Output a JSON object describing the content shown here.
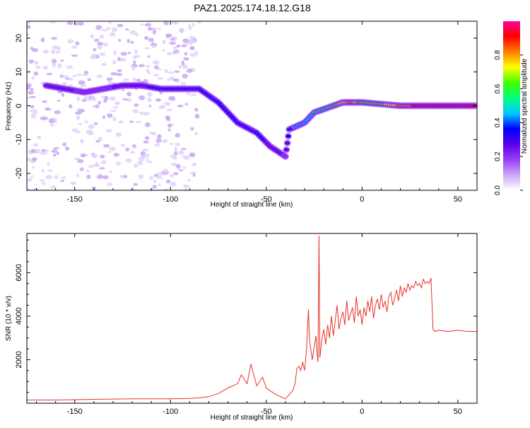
{
  "title": "PAZ1.2025.174.18.12.G18",
  "chart_data": [
    {
      "type": "heatmap",
      "xlabel": "Height of straight line (km)",
      "ylabel": "Frequency (Hz)",
      "xlim": [
        -175,
        60
      ],
      "ylim": [
        -25,
        25
      ],
      "xticks": [
        -150,
        -100,
        -50,
        0,
        50
      ],
      "yticks": [
        -20,
        -10,
        0,
        10,
        20
      ],
      "colorbar": {
        "label": "Normalized spectral amplitude",
        "range": [
          0,
          1
        ],
        "ticks": [
          0.0,
          0.2,
          0.4,
          0.6,
          0.8
        ],
        "colors": [
          "#ffffff",
          "#c9a8f5",
          "#9a3df5",
          "#5a00e8",
          "#0000ff",
          "#00c8ff",
          "#00ff80",
          "#40ff00",
          "#ffff00",
          "#ff8000",
          "#ff0000",
          "#ff00a0"
        ]
      },
      "ridge": [
        {
          "x": -165,
          "y": 6,
          "v": 0.3
        },
        {
          "x": -155,
          "y": 5,
          "v": 0.25
        },
        {
          "x": -145,
          "y": 4,
          "v": 0.2
        },
        {
          "x": -135,
          "y": 5,
          "v": 0.2
        },
        {
          "x": -125,
          "y": 6,
          "v": 0.25
        },
        {
          "x": -115,
          "y": 6,
          "v": 0.3
        },
        {
          "x": -105,
          "y": 5,
          "v": 0.35
        },
        {
          "x": -95,
          "y": 5,
          "v": 0.35
        },
        {
          "x": -85,
          "y": 5,
          "v": 0.35
        },
        {
          "x": -75,
          "y": 1,
          "v": 0.35
        },
        {
          "x": -65,
          "y": -5,
          "v": 0.35
        },
        {
          "x": -55,
          "y": -8,
          "v": 0.35
        },
        {
          "x": -48,
          "y": -12,
          "v": 0.3
        },
        {
          "x": -40,
          "y": -15,
          "v": 0.2
        },
        {
          "x": -38,
          "y": -7,
          "v": 0.4
        },
        {
          "x": -30,
          "y": -5,
          "v": 0.45
        },
        {
          "x": -25,
          "y": -2,
          "v": 0.5
        },
        {
          "x": -15,
          "y": 0,
          "v": 0.6
        },
        {
          "x": -10,
          "y": 1,
          "v": 0.75
        },
        {
          "x": -5,
          "y": 1,
          "v": 0.8
        },
        {
          "x": 0,
          "y": 1,
          "v": 0.6
        },
        {
          "x": 10,
          "y": 0.5,
          "v": 0.65
        },
        {
          "x": 20,
          "y": 0,
          "v": 0.8
        },
        {
          "x": 30,
          "y": 0,
          "v": 0.9
        },
        {
          "x": 40,
          "y": 0,
          "v": 0.95
        },
        {
          "x": 50,
          "y": 0,
          "v": 0.95
        },
        {
          "x": 60,
          "y": 0,
          "v": 0.95
        }
      ]
    },
    {
      "type": "line",
      "xlabel": "Height of straight line (km)",
      "ylabel": "SNR (10 * v/v)",
      "xlim": [
        -175,
        60
      ],
      "ylim": [
        0,
        7800
      ],
      "xticks": [
        -150,
        -100,
        -50,
        0,
        50
      ],
      "yticks": [
        2000,
        4000,
        6000
      ],
      "color": "#e8312a",
      "series": [
        {
          "x": [
            -175,
            -160,
            -140,
            -120,
            -100,
            -90,
            -85,
            -80,
            -75,
            -70,
            -65,
            -63,
            -60,
            -58,
            -55,
            -52,
            -50,
            -45,
            -40,
            -38,
            -36,
            -35,
            -34,
            -33,
            -32,
            -31,
            -30,
            -29,
            -28.5,
            -28,
            -27.5,
            -27,
            -26,
            -25,
            -24,
            -23.5,
            -23,
            -22.5,
            -22,
            -21,
            -20,
            -19,
            -18,
            -17,
            -16,
            -15,
            -14,
            -13,
            -12,
            -11,
            -10,
            -9,
            -8,
            -7,
            -6,
            -5,
            -4,
            -3,
            -2,
            -1,
            0,
            1,
            2,
            3,
            4,
            5,
            6,
            7,
            8,
            9,
            10,
            11,
            12,
            13,
            14,
            15,
            16,
            17,
            18,
            19,
            20,
            21,
            22,
            23,
            24,
            25,
            26,
            27,
            28,
            29,
            30,
            31,
            32,
            33,
            34,
            35,
            36,
            37,
            38,
            40,
            45,
            50,
            55,
            60
          ],
          "y": [
            150,
            150,
            180,
            200,
            200,
            220,
            250,
            300,
            450,
            700,
            900,
            1300,
            900,
            1800,
            800,
            1200,
            700,
            400,
            200,
            400,
            600,
            900,
            1600,
            1700,
            1500,
            1900,
            1500,
            2500,
            3400,
            4300,
            3000,
            2600,
            2000,
            2600,
            3100,
            2300,
            1900,
            7700,
            2100,
            2900,
            3400,
            2700,
            3600,
            3000,
            4000,
            3100,
            3800,
            4500,
            3400,
            3900,
            4200,
            3600,
            4700,
            3800,
            4100,
            4400,
            3700,
            4900,
            4000,
            4300,
            3600,
            4400,
            4000,
            4700,
            4200,
            4900,
            3900,
            4500,
            4800,
            4300,
            5000,
            4400,
            4700,
            4200,
            4900,
            5100,
            4500,
            4800,
            5200,
            4700,
            5400,
            4900,
            5300,
            5100,
            5500,
            5200,
            5400,
            5300,
            5600,
            5400,
            5500,
            5300,
            5700,
            5500,
            5600,
            5500,
            5750,
            3400,
            3300,
            3350,
            3300,
            3350,
            3300,
            3300
          ]
        }
      ]
    }
  ]
}
